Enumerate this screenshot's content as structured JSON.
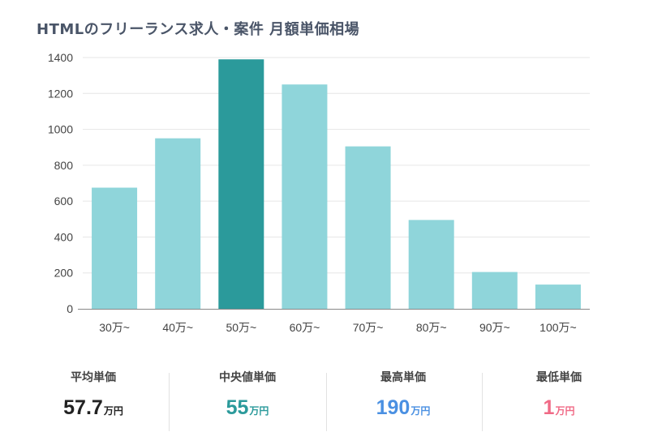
{
  "title": "HTMLのフリーランス求人・案件 月額単価相場",
  "chart_data": {
    "type": "bar",
    "categories": [
      "30万~",
      "40万~",
      "50万~",
      "60万~",
      "70万~",
      "80万~",
      "90万~",
      "100万~"
    ],
    "values": [
      675,
      950,
      1390,
      1250,
      905,
      495,
      205,
      135
    ],
    "highlight_index": 2,
    "ylim": [
      0,
      1400
    ],
    "yticks": [
      0,
      200,
      400,
      600,
      800,
      1000,
      1200,
      1400
    ],
    "grid": true,
    "colors": {
      "bar": "#8fd5da",
      "highlight": "#2b9a9b"
    }
  },
  "stats": [
    {
      "label": "平均単価",
      "value": "57.7",
      "unit": "万円",
      "color": "#222222"
    },
    {
      "label": "中央値単価",
      "value": "55",
      "unit": "万円",
      "color": "#2b9a9b"
    },
    {
      "label": "最高単価",
      "value": "190",
      "unit": "万円",
      "color": "#4a90e2"
    },
    {
      "label": "最低単価",
      "value": "1",
      "unit": "万円",
      "color": "#f06a86"
    }
  ]
}
